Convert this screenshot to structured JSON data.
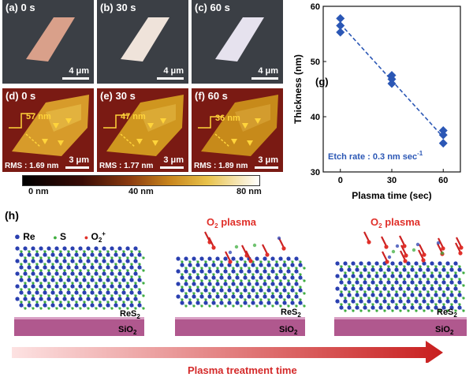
{
  "optical_panels": [
    {
      "label": "(a) 0 s",
      "scale": "4 μm"
    },
    {
      "label": "(b) 30 s",
      "scale": "4 μm"
    },
    {
      "label": "(c) 60 s",
      "scale": "4 μm"
    }
  ],
  "afm_panels": [
    {
      "label": "(d) 0 s",
      "height": "57 nm",
      "rms": "RMS : 1.69 nm",
      "scale": "3 μm"
    },
    {
      "label": "(e) 30 s",
      "height": "47 nm",
      "rms": "RMS : 1.77 nm",
      "scale": "3 μm"
    },
    {
      "label": "(f) 60 s",
      "height": "36 nm",
      "rms": "RMS : 1.89 nm",
      "scale": "3 μm"
    }
  ],
  "colorbar": {
    "ticks": [
      "0 nm",
      "40 nm",
      "80 nm"
    ]
  },
  "chart_data": {
    "type": "scatter",
    "panel_label": "(g)",
    "xlabel": "Plasma time (sec)",
    "ylabel": "Thickness (nm)",
    "x_ticks": [
      "0",
      "30",
      "60"
    ],
    "y_ticks": [
      "30",
      "40",
      "50",
      "60"
    ],
    "xlim": [
      -10,
      70
    ],
    "ylim": [
      30,
      60
    ],
    "points": [
      {
        "x": 0,
        "y": 57.8
      },
      {
        "x": 0,
        "y": 56.5
      },
      {
        "x": 0,
        "y": 55.3
      },
      {
        "x": 30,
        "y": 47.5
      },
      {
        "x": 30,
        "y": 46.8
      },
      {
        "x": 30,
        "y": 46.0
      },
      {
        "x": 60,
        "y": 37.5
      },
      {
        "x": 60,
        "y": 36.7
      },
      {
        "x": 60,
        "y": 35.2
      }
    ],
    "fit": [
      {
        "x": 0,
        "y": 56.8
      },
      {
        "x": 60,
        "y": 36.3
      }
    ],
    "annotation": "Etch rate : 0.3 nm sec",
    "annotation_sup": "-1",
    "color": "#2b57b5"
  },
  "schematic": {
    "label": "(h)",
    "legend": {
      "re": "Re",
      "s": "S",
      "o": "O",
      "o_sub": "2",
      "o_sup": "+"
    },
    "plasma_label": "O",
    "plasma_sub": "2",
    "plasma_word": " plasma",
    "layer_label": "ReS",
    "layer_sub": "2",
    "substrate_label": "SiO",
    "substrate_sub": "2",
    "arrow_label": "Plasma treatment time",
    "colors": {
      "re": "#2a3fb0",
      "s": "#3fae3f",
      "o": "#e0302a",
      "substrate": "#b0588e",
      "arrow": "#cc2222"
    }
  }
}
